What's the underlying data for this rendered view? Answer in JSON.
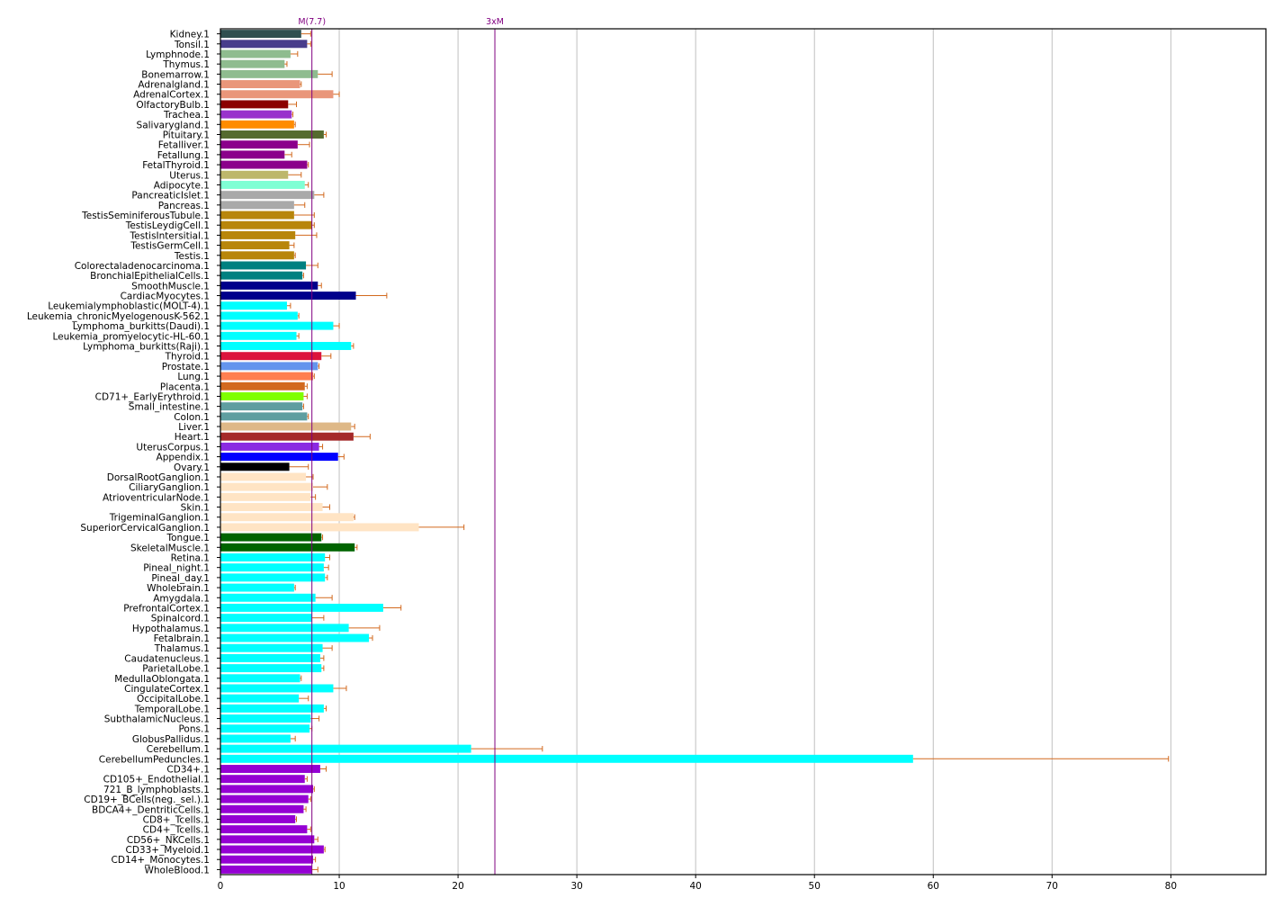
{
  "chart_data": {
    "type": "bar",
    "orientation": "horizontal",
    "title": "",
    "xlabel": "",
    "ylabel": "",
    "xlim": [
      0,
      88
    ],
    "x_ticks": [
      0,
      10,
      20,
      30,
      40,
      50,
      60,
      70,
      80
    ],
    "grid": "vertical",
    "legend": "none",
    "colors": {
      "axis": "#000000",
      "grid": "#c0c0c0",
      "error_bar": "#d2691e",
      "reference_line": "#800080"
    },
    "reference_lines": [
      {
        "label": "M(7.7)",
        "value": 7.7
      },
      {
        "label": "3xM",
        "value": 23.1
      }
    ],
    "categories": [
      "Kidney.1",
      "Tonsil.1",
      "Lymphnode.1",
      "Thymus.1",
      "Bonemarrow.1",
      "Adrenalgland.1",
      "AdrenalCortex.1",
      "OlfactoryBulb.1",
      "Trachea.1",
      "Salivarygland.1",
      "Pituitary.1",
      "Fetalliver.1",
      "Fetallung.1",
      "FetalThyroid.1",
      "Uterus.1",
      "Adipocyte.1",
      "PancreaticIslet.1",
      "Pancreas.1",
      "TestisSeminiferousTubule.1",
      "TestisLeydigCell.1",
      "TestisIntersitial.1",
      "TestisGermCell.1",
      "Testis.1",
      "Colorectaladenocarcinoma.1",
      "BronchialEpithelialCells.1",
      "SmoothMuscle.1",
      "CardiacMyocytes.1",
      "Leukemialymphoblastic(MOLT-4).1",
      "Leukemia_chronicMyelogenousK-562.1",
      "Lymphoma_burkitts(Daudi).1",
      "Leukemia_promyelocytic-HL-60.1",
      "Lymphoma_burkitts(Raji).1",
      "Thyroid.1",
      "Prostate.1",
      "Lung.1",
      "Placenta.1",
      "CD71+_EarlyErythroid.1",
      "Small_intestine.1",
      "Colon.1",
      "Liver.1",
      "Heart.1",
      "UterusCorpus.1",
      "Appendix.1",
      "Ovary.1",
      "DorsalRootGanglion.1",
      "CiliaryGanglion.1",
      "AtrioventricularNode.1",
      "Skin.1",
      "TrigeminalGanglion.1",
      "SuperiorCervicalGanglion.1",
      "Tongue.1",
      "SkeletalMuscle.1",
      "Retina.1",
      "Pineal_night.1",
      "Pineal_day.1",
      "Wholebrain.1",
      "Amygdala.1",
      "PrefrontalCortex.1",
      "Spinalcord.1",
      "Hypothalamus.1",
      "Fetalbrain.1",
      "Thalamus.1",
      "Caudatenucleus.1",
      "ParietalLobe.1",
      "MedullaOblongata.1",
      "CingulateCortex.1",
      "OccipitalLobe.1",
      "TemporalLobe.1",
      "SubthalamicNucleus.1",
      "Pons.1",
      "GlobusPallidus.1",
      "Cerebellum.1",
      "CerebellumPeduncles.1",
      "CD34+.1",
      "CD105+_Endothelial.1",
      "721_B_lymphoblasts.1",
      "CD19+_BCells(neg._sel.).1",
      "BDCA4+_DentriticCells.1",
      "CD8+_Tcells.1",
      "CD4+_Tcells.1",
      "CD56+_NKCells.1",
      "CD33+_Myeloid.1",
      "CD14+_Monocytes.1",
      "WholeBlood.1"
    ],
    "values": [
      6.8,
      7.3,
      5.9,
      5.4,
      8.2,
      6.7,
      9.5,
      5.7,
      6.0,
      6.2,
      8.7,
      6.5,
      5.4,
      7.3,
      5.7,
      7.1,
      7.9,
      6.2,
      6.2,
      7.7,
      6.3,
      5.8,
      6.2,
      7.2,
      6.9,
      8.2,
      11.4,
      5.6,
      6.5,
      9.5,
      6.4,
      11.0,
      8.5,
      8.2,
      7.8,
      7.1,
      7.0,
      6.9,
      7.3,
      11.0,
      11.2,
      8.3,
      9.9,
      5.8,
      7.2,
      7.8,
      7.6,
      8.6,
      11.2,
      16.7,
      8.5,
      11.3,
      8.8,
      8.7,
      8.8,
      6.2,
      8.0,
      13.7,
      7.7,
      10.8,
      12.5,
      8.6,
      8.4,
      8.5,
      6.7,
      9.5,
      6.6,
      8.7,
      7.6,
      7.5,
      5.9,
      21.1,
      58.3,
      8.4,
      7.1,
      7.8,
      7.4,
      7.0,
      6.3,
      7.3,
      7.9,
      8.7,
      7.8,
      7.7
    ],
    "errors": [
      0.8,
      0.3,
      0.6,
      0.2,
      1.2,
      0.1,
      0.5,
      0.7,
      0.1,
      0.1,
      0.2,
      1.0,
      0.6,
      0.1,
      1.1,
      0.3,
      0.8,
      0.9,
      1.7,
      0.2,
      1.8,
      0.4,
      0.1,
      1.0,
      0.1,
      0.3,
      2.6,
      0.3,
      0.1,
      0.5,
      0.2,
      0.2,
      0.8,
      0.1,
      0.1,
      0.2,
      0.3,
      0.1,
      0.1,
      0.3,
      1.4,
      0.3,
      0.5,
      1.6,
      0.6,
      1.2,
      0.4,
      0.6,
      0.1,
      3.8,
      0.1,
      0.2,
      0.4,
      0.4,
      0.2,
      0.1,
      1.4,
      1.5,
      1.0,
      2.6,
      0.3,
      0.8,
      0.3,
      0.2,
      0.1,
      1.1,
      0.8,
      0.2,
      0.7,
      0.2,
      0.4,
      6.0,
      21.5,
      0.5,
      0.2,
      0.1,
      0.2,
      0.2,
      0.1,
      0.3,
      0.3,
      0.1,
      0.2,
      0.5
    ],
    "bar_colors": [
      "#2f4f4f",
      "#483d8b",
      "#8fbc8f",
      "#8fbc8f",
      "#8fbc8f",
      "#e9967a",
      "#e9967a",
      "#8b0000",
      "#9932cc",
      "#ff8c00",
      "#556b2f",
      "#8b008b",
      "#8b008b",
      "#8b008b",
      "#bdb76b",
      "#7fffd4",
      "#a9a9a9",
      "#a9a9a9",
      "#b8860b",
      "#b8860b",
      "#b8860b",
      "#b8860b",
      "#b8860b",
      "#008080",
      "#008080",
      "#00008b",
      "#00008b",
      "#00ffff",
      "#00ffff",
      "#00ffff",
      "#00ffff",
      "#00ffff",
      "#dc143c",
      "#6495ed",
      "#ff7f50",
      "#d2691e",
      "#7fff00",
      "#5f9ea0",
      "#5f9ea0",
      "#deb887",
      "#a52a2a",
      "#8a2be2",
      "#0000ff",
      "#000000",
      "#ffe4c4",
      "#ffe4c4",
      "#ffe4c4",
      "#ffe4c4",
      "#ffe4c4",
      "#ffe4c4",
      "#006400",
      "#006400",
      "#00ffff",
      "#00ffff",
      "#00ffff",
      "#00ffff",
      "#00ffff",
      "#00ffff",
      "#00ffff",
      "#00ffff",
      "#00ffff",
      "#00ffff",
      "#00ffff",
      "#00ffff",
      "#00ffff",
      "#00ffff",
      "#00ffff",
      "#00ffff",
      "#00ffff",
      "#00ffff",
      "#00ffff",
      "#00ffff",
      "#00ffff",
      "#9400d3",
      "#9400d3",
      "#9400d3",
      "#9400d3",
      "#9400d3",
      "#9400d3",
      "#9400d3",
      "#9400d3",
      "#9400d3",
      "#9400d3",
      "#9400d3"
    ]
  }
}
